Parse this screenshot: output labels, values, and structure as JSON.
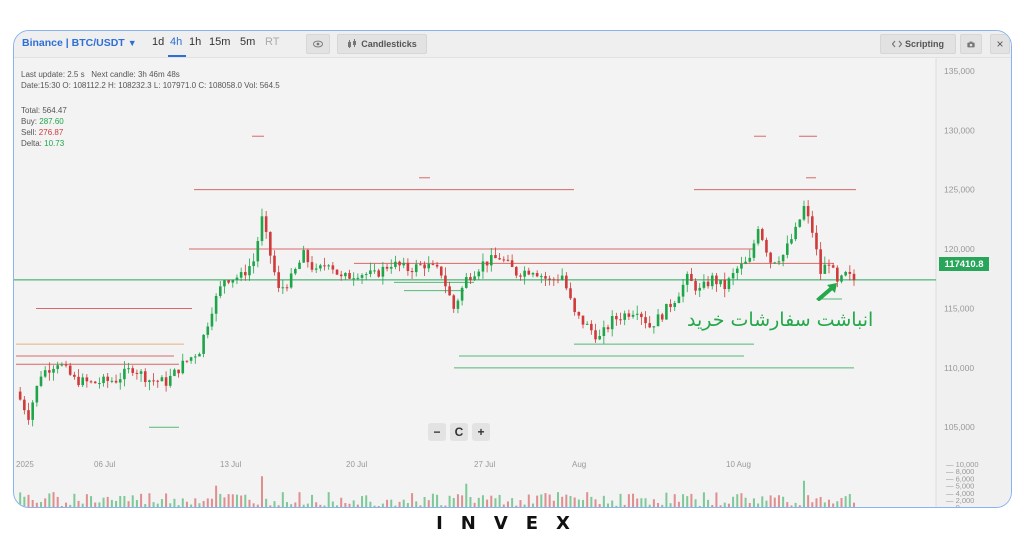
{
  "toolbar": {
    "exchange_label": "Binance | BTC/USDT",
    "timeframes": [
      "1d",
      "4h",
      "1h",
      "15m",
      "5m",
      "RT"
    ],
    "active_timeframe": "4h",
    "candlesticks_label": "Candlesticks",
    "scripting_label": "Scripting",
    "close_label": "×"
  },
  "info": {
    "last_update": "Last update: 2.5 s",
    "next_candle": "Next candle: 3h 46m 48s",
    "ohlc": "Date:15:30 O: 108112.2 H: 108232.3 L: 107971.0 C: 108058.0 Vol: 564.5",
    "total": "Total: 564.47",
    "buy_label": "Buy:",
    "buy_value": "287.60",
    "sell_label": "Sell:",
    "sell_value": "276.87",
    "delta_label": "Delta:",
    "delta_value": "10.73"
  },
  "price_axis": {
    "ticks": [
      "135,000",
      "130,000",
      "125,000",
      "120,000",
      "115,000",
      "110,000",
      "105,000"
    ],
    "current_price": "117410.8"
  },
  "time_axis": {
    "ticks": [
      "2025",
      "06 Jul",
      "13 Jul",
      "20 Jul",
      "27 Jul",
      "Aug",
      "10 Aug"
    ]
  },
  "volume_axis": {
    "ticks": [
      "10,000",
      "8,000",
      "6,000",
      "5,000",
      "4,000",
      "2,000",
      "0"
    ]
  },
  "zoom": {
    "minus": "−",
    "reset": "C",
    "plus": "+"
  },
  "annotation": "انباشت سفارشات خرید",
  "logo": "INVEX",
  "colors": {
    "up": "#1ea54a",
    "down": "#d03a3a",
    "accent": "#2d6fd6",
    "price_line": "#27a65a"
  },
  "chart_data": {
    "type": "candlestick",
    "pair": "BTC/USDT",
    "interval": "4h",
    "ylim": [
      103000,
      136000
    ],
    "close_path": [
      {
        "t": 0,
        "v": 108000
      },
      {
        "t": 3,
        "v": 106000
      },
      {
        "t": 6,
        "v": 109500
      },
      {
        "t": 10,
        "v": 110500
      },
      {
        "t": 14,
        "v": 109000
      },
      {
        "t": 18,
        "v": 108700
      },
      {
        "t": 24,
        "v": 109000
      },
      {
        "t": 28,
        "v": 110000
      },
      {
        "t": 32,
        "v": 109000
      },
      {
        "t": 36,
        "v": 108800
      },
      {
        "t": 40,
        "v": 110300
      },
      {
        "t": 44,
        "v": 111500
      },
      {
        "t": 47,
        "v": 115000
      },
      {
        "t": 50,
        "v": 117500
      },
      {
        "t": 54,
        "v": 117700
      },
      {
        "t": 57,
        "v": 119000
      },
      {
        "t": 59,
        "v": 122500
      },
      {
        "t": 61,
        "v": 119500
      },
      {
        "t": 63,
        "v": 116500
      },
      {
        "t": 66,
        "v": 117500
      },
      {
        "t": 69,
        "v": 119500
      },
      {
        "t": 72,
        "v": 118000
      },
      {
        "t": 75,
        "v": 119000
      },
      {
        "t": 78,
        "v": 117500
      },
      {
        "t": 82,
        "v": 118000
      },
      {
        "t": 86,
        "v": 117800
      },
      {
        "t": 90,
        "v": 118800
      },
      {
        "t": 94,
        "v": 118300
      },
      {
        "t": 98,
        "v": 118700
      },
      {
        "t": 102,
        "v": 118000
      },
      {
        "t": 105,
        "v": 115000
      },
      {
        "t": 108,
        "v": 117500
      },
      {
        "t": 112,
        "v": 118800
      },
      {
        "t": 116,
        "v": 119300
      },
      {
        "t": 120,
        "v": 118000
      },
      {
        "t": 124,
        "v": 118300
      },
      {
        "t": 128,
        "v": 117300
      },
      {
        "t": 131,
        "v": 117800
      },
      {
        "t": 134,
        "v": 114500
      },
      {
        "t": 137,
        "v": 113500
      },
      {
        "t": 140,
        "v": 112500
      },
      {
        "t": 143,
        "v": 114000
      },
      {
        "t": 146,
        "v": 114500
      },
      {
        "t": 149,
        "v": 115000
      },
      {
        "t": 152,
        "v": 113500
      },
      {
        "t": 155,
        "v": 114500
      },
      {
        "t": 158,
        "v": 115800
      },
      {
        "t": 161,
        "v": 117500
      },
      {
        "t": 164,
        "v": 116500
      },
      {
        "t": 167,
        "v": 117500
      },
      {
        "t": 170,
        "v": 116800
      },
      {
        "t": 173,
        "v": 118300
      },
      {
        "t": 176,
        "v": 119000
      },
      {
        "t": 178,
        "v": 122000
      },
      {
        "t": 181,
        "v": 119000
      },
      {
        "t": 184,
        "v": 119500
      },
      {
        "t": 187,
        "v": 121500
      },
      {
        "t": 189,
        "v": 123500
      },
      {
        "t": 191,
        "v": 121500
      },
      {
        "t": 193,
        "v": 118000
      },
      {
        "t": 195,
        "v": 119000
      },
      {
        "t": 197,
        "v": 117000
      },
      {
        "t": 199,
        "v": 117800
      },
      {
        "t": 201,
        "v": 117400
      }
    ]
  }
}
